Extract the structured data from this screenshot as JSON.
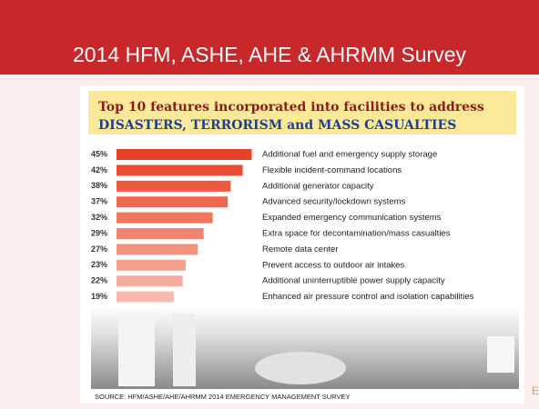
{
  "header": {
    "title": "2014 HFM, ASHE, AHE & AHRMM Survey"
  },
  "chart_data": {
    "type": "bar",
    "orientation": "horizontal",
    "title": "Top 10 features incorporated into facilities to address",
    "subtitle": "DISASTERS, TERRORISM and MASS CASUALTIES",
    "categories": [
      "Additional fuel and emergency supply storage",
      "Flexible incident-command locations",
      "Additional generator capacity",
      "Advanced security/lockdown systems",
      "Expanded emergency communication systems",
      "Extra space for decontamination/mass casualties",
      "Remote data center",
      "Prevent access to outdoor air intakes",
      "Additional uninterruptible power supply capacity",
      "Enhanced air pressure control and isolation capabilities"
    ],
    "values": [
      45,
      42,
      38,
      37,
      32,
      29,
      27,
      23,
      22,
      19
    ],
    "value_labels": [
      "45%",
      "42%",
      "38%",
      "37%",
      "32%",
      "29%",
      "27%",
      "23%",
      "22%",
      "19%"
    ],
    "colors": [
      "#e8412a",
      "#ea4d35",
      "#ec5a42",
      "#ee6750",
      "#f0765f",
      "#f2846f",
      "#f3917e",
      "#f49f8d",
      "#f6ac9c",
      "#f7baab"
    ],
    "source": "SOURCE: HFM/ASHE/AHE/AHRMM 2014 EMERGENCY MANAGEMENT SURVEY"
  },
  "corner_text": "E"
}
